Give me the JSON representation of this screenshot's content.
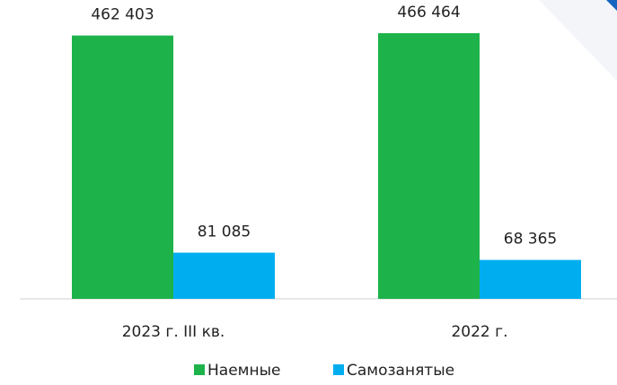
{
  "chart_data": {
    "type": "bar",
    "categories": [
      "2023 г. III кв.",
      "2022 г."
    ],
    "series": [
      {
        "name": "Наемные",
        "color": "#1db34a",
        "values": [
          462403,
          466464
        ],
        "value_labels": [
          "462 403",
          "466 464"
        ]
      },
      {
        "name": "Самозанятые",
        "color": "#00aeef",
        "values": [
          81085,
          68365
        ],
        "value_labels": [
          "81 085",
          "68 365"
        ]
      }
    ]
  }
}
